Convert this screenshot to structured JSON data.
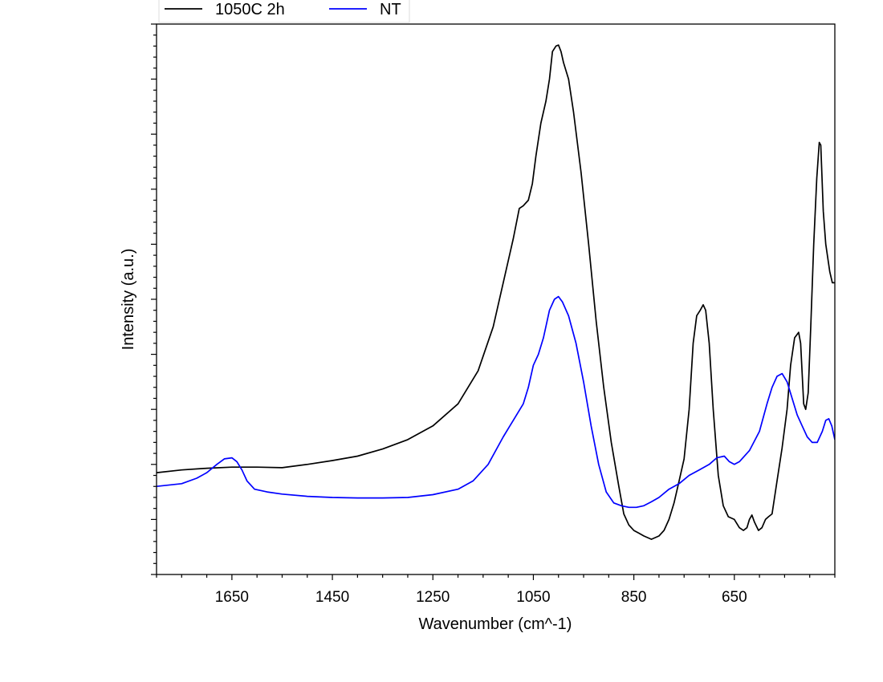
{
  "chart_data": {
    "type": "line",
    "xlabel": "Wavenumber (cm^-1)",
    "ylabel": "Intensity (a.u.)",
    "xlim": [
      1800,
      450
    ],
    "x_reversed": true,
    "ylim": [
      0,
      1
    ],
    "y_tick_labels_shown": false,
    "grid": false,
    "legend_position": "top-left, above plot",
    "x_ticks": [
      1650,
      1450,
      1250,
      1050,
      850,
      650
    ],
    "x_tick_labels": [
      "1650",
      "1450",
      "1250",
      "1050",
      "850",
      "650"
    ],
    "series": [
      {
        "name": "1050C 2h",
        "color": "#000000",
        "points": [
          [
            1800,
            0.185
          ],
          [
            1750,
            0.19
          ],
          [
            1700,
            0.193
          ],
          [
            1650,
            0.195
          ],
          [
            1600,
            0.195
          ],
          [
            1550,
            0.194
          ],
          [
            1500,
            0.2
          ],
          [
            1450,
            0.207
          ],
          [
            1400,
            0.215
          ],
          [
            1350,
            0.228
          ],
          [
            1300,
            0.245
          ],
          [
            1250,
            0.27
          ],
          [
            1200,
            0.31
          ],
          [
            1160,
            0.37
          ],
          [
            1130,
            0.45
          ],
          [
            1110,
            0.53
          ],
          [
            1090,
            0.61
          ],
          [
            1078,
            0.665
          ],
          [
            1070,
            0.67
          ],
          [
            1060,
            0.68
          ],
          [
            1052,
            0.71
          ],
          [
            1045,
            0.76
          ],
          [
            1035,
            0.82
          ],
          [
            1025,
            0.86
          ],
          [
            1018,
            0.9
          ],
          [
            1012,
            0.95
          ],
          [
            1005,
            0.96
          ],
          [
            1000,
            0.962
          ],
          [
            995,
            0.95
          ],
          [
            990,
            0.93
          ],
          [
            980,
            0.9
          ],
          [
            970,
            0.84
          ],
          [
            955,
            0.73
          ],
          [
            940,
            0.6
          ],
          [
            925,
            0.46
          ],
          [
            910,
            0.34
          ],
          [
            895,
            0.24
          ],
          [
            880,
            0.16
          ],
          [
            870,
            0.11
          ],
          [
            860,
            0.09
          ],
          [
            850,
            0.08
          ],
          [
            840,
            0.075
          ],
          [
            830,
            0.07
          ],
          [
            815,
            0.064
          ],
          [
            800,
            0.07
          ],
          [
            790,
            0.08
          ],
          [
            780,
            0.1
          ],
          [
            770,
            0.13
          ],
          [
            760,
            0.17
          ],
          [
            750,
            0.21
          ],
          [
            740,
            0.3
          ],
          [
            732,
            0.42
          ],
          [
            725,
            0.47
          ],
          [
            718,
            0.48
          ],
          [
            712,
            0.49
          ],
          [
            707,
            0.48
          ],
          [
            700,
            0.42
          ],
          [
            692,
            0.3
          ],
          [
            682,
            0.18
          ],
          [
            672,
            0.125
          ],
          [
            662,
            0.105
          ],
          [
            650,
            0.1
          ],
          [
            640,
            0.085
          ],
          [
            632,
            0.08
          ],
          [
            625,
            0.085
          ],
          [
            620,
            0.1
          ],
          [
            615,
            0.108
          ],
          [
            610,
            0.095
          ],
          [
            602,
            0.08
          ],
          [
            595,
            0.085
          ],
          [
            588,
            0.1
          ],
          [
            582,
            0.105
          ],
          [
            575,
            0.11
          ],
          [
            565,
            0.17
          ],
          [
            555,
            0.23
          ],
          [
            545,
            0.3
          ],
          [
            538,
            0.38
          ],
          [
            530,
            0.43
          ],
          [
            522,
            0.44
          ],
          [
            518,
            0.42
          ],
          [
            512,
            0.31
          ],
          [
            508,
            0.3
          ],
          [
            503,
            0.33
          ],
          [
            498,
            0.45
          ],
          [
            492,
            0.6
          ],
          [
            486,
            0.72
          ],
          [
            481,
            0.785
          ],
          [
            478,
            0.78
          ],
          [
            473,
            0.66
          ],
          [
            468,
            0.6
          ],
          [
            460,
            0.55
          ],
          [
            455,
            0.53
          ],
          [
            450,
            0.53
          ]
        ]
      },
      {
        "name": "NT",
        "color": "#0000ff",
        "points": [
          [
            1800,
            0.16
          ],
          [
            1750,
            0.165
          ],
          [
            1720,
            0.175
          ],
          [
            1700,
            0.185
          ],
          [
            1680,
            0.2
          ],
          [
            1665,
            0.21
          ],
          [
            1650,
            0.212
          ],
          [
            1640,
            0.205
          ],
          [
            1630,
            0.19
          ],
          [
            1620,
            0.17
          ],
          [
            1605,
            0.155
          ],
          [
            1580,
            0.15
          ],
          [
            1550,
            0.146
          ],
          [
            1500,
            0.142
          ],
          [
            1450,
            0.14
          ],
          [
            1400,
            0.139
          ],
          [
            1350,
            0.139
          ],
          [
            1300,
            0.14
          ],
          [
            1250,
            0.145
          ],
          [
            1200,
            0.155
          ],
          [
            1170,
            0.17
          ],
          [
            1140,
            0.2
          ],
          [
            1110,
            0.25
          ],
          [
            1090,
            0.28
          ],
          [
            1070,
            0.31
          ],
          [
            1060,
            0.34
          ],
          [
            1050,
            0.38
          ],
          [
            1040,
            0.4
          ],
          [
            1030,
            0.43
          ],
          [
            1018,
            0.48
          ],
          [
            1008,
            0.5
          ],
          [
            1000,
            0.505
          ],
          [
            992,
            0.495
          ],
          [
            980,
            0.47
          ],
          [
            965,
            0.42
          ],
          [
            950,
            0.35
          ],
          [
            935,
            0.27
          ],
          [
            920,
            0.2
          ],
          [
            905,
            0.15
          ],
          [
            890,
            0.13
          ],
          [
            875,
            0.125
          ],
          [
            860,
            0.122
          ],
          [
            845,
            0.122
          ],
          [
            830,
            0.125
          ],
          [
            815,
            0.132
          ],
          [
            800,
            0.14
          ],
          [
            780,
            0.155
          ],
          [
            760,
            0.165
          ],
          [
            740,
            0.18
          ],
          [
            720,
            0.19
          ],
          [
            700,
            0.2
          ],
          [
            685,
            0.212
          ],
          [
            670,
            0.215
          ],
          [
            660,
            0.205
          ],
          [
            650,
            0.2
          ],
          [
            640,
            0.205
          ],
          [
            620,
            0.225
          ],
          [
            600,
            0.26
          ],
          [
            585,
            0.31
          ],
          [
            575,
            0.34
          ],
          [
            565,
            0.36
          ],
          [
            555,
            0.365
          ],
          [
            545,
            0.35
          ],
          [
            535,
            0.32
          ],
          [
            525,
            0.29
          ],
          [
            515,
            0.27
          ],
          [
            505,
            0.25
          ],
          [
            495,
            0.24
          ],
          [
            485,
            0.24
          ],
          [
            475,
            0.26
          ],
          [
            468,
            0.28
          ],
          [
            462,
            0.283
          ],
          [
            456,
            0.27
          ],
          [
            450,
            0.245
          ]
        ]
      }
    ]
  }
}
